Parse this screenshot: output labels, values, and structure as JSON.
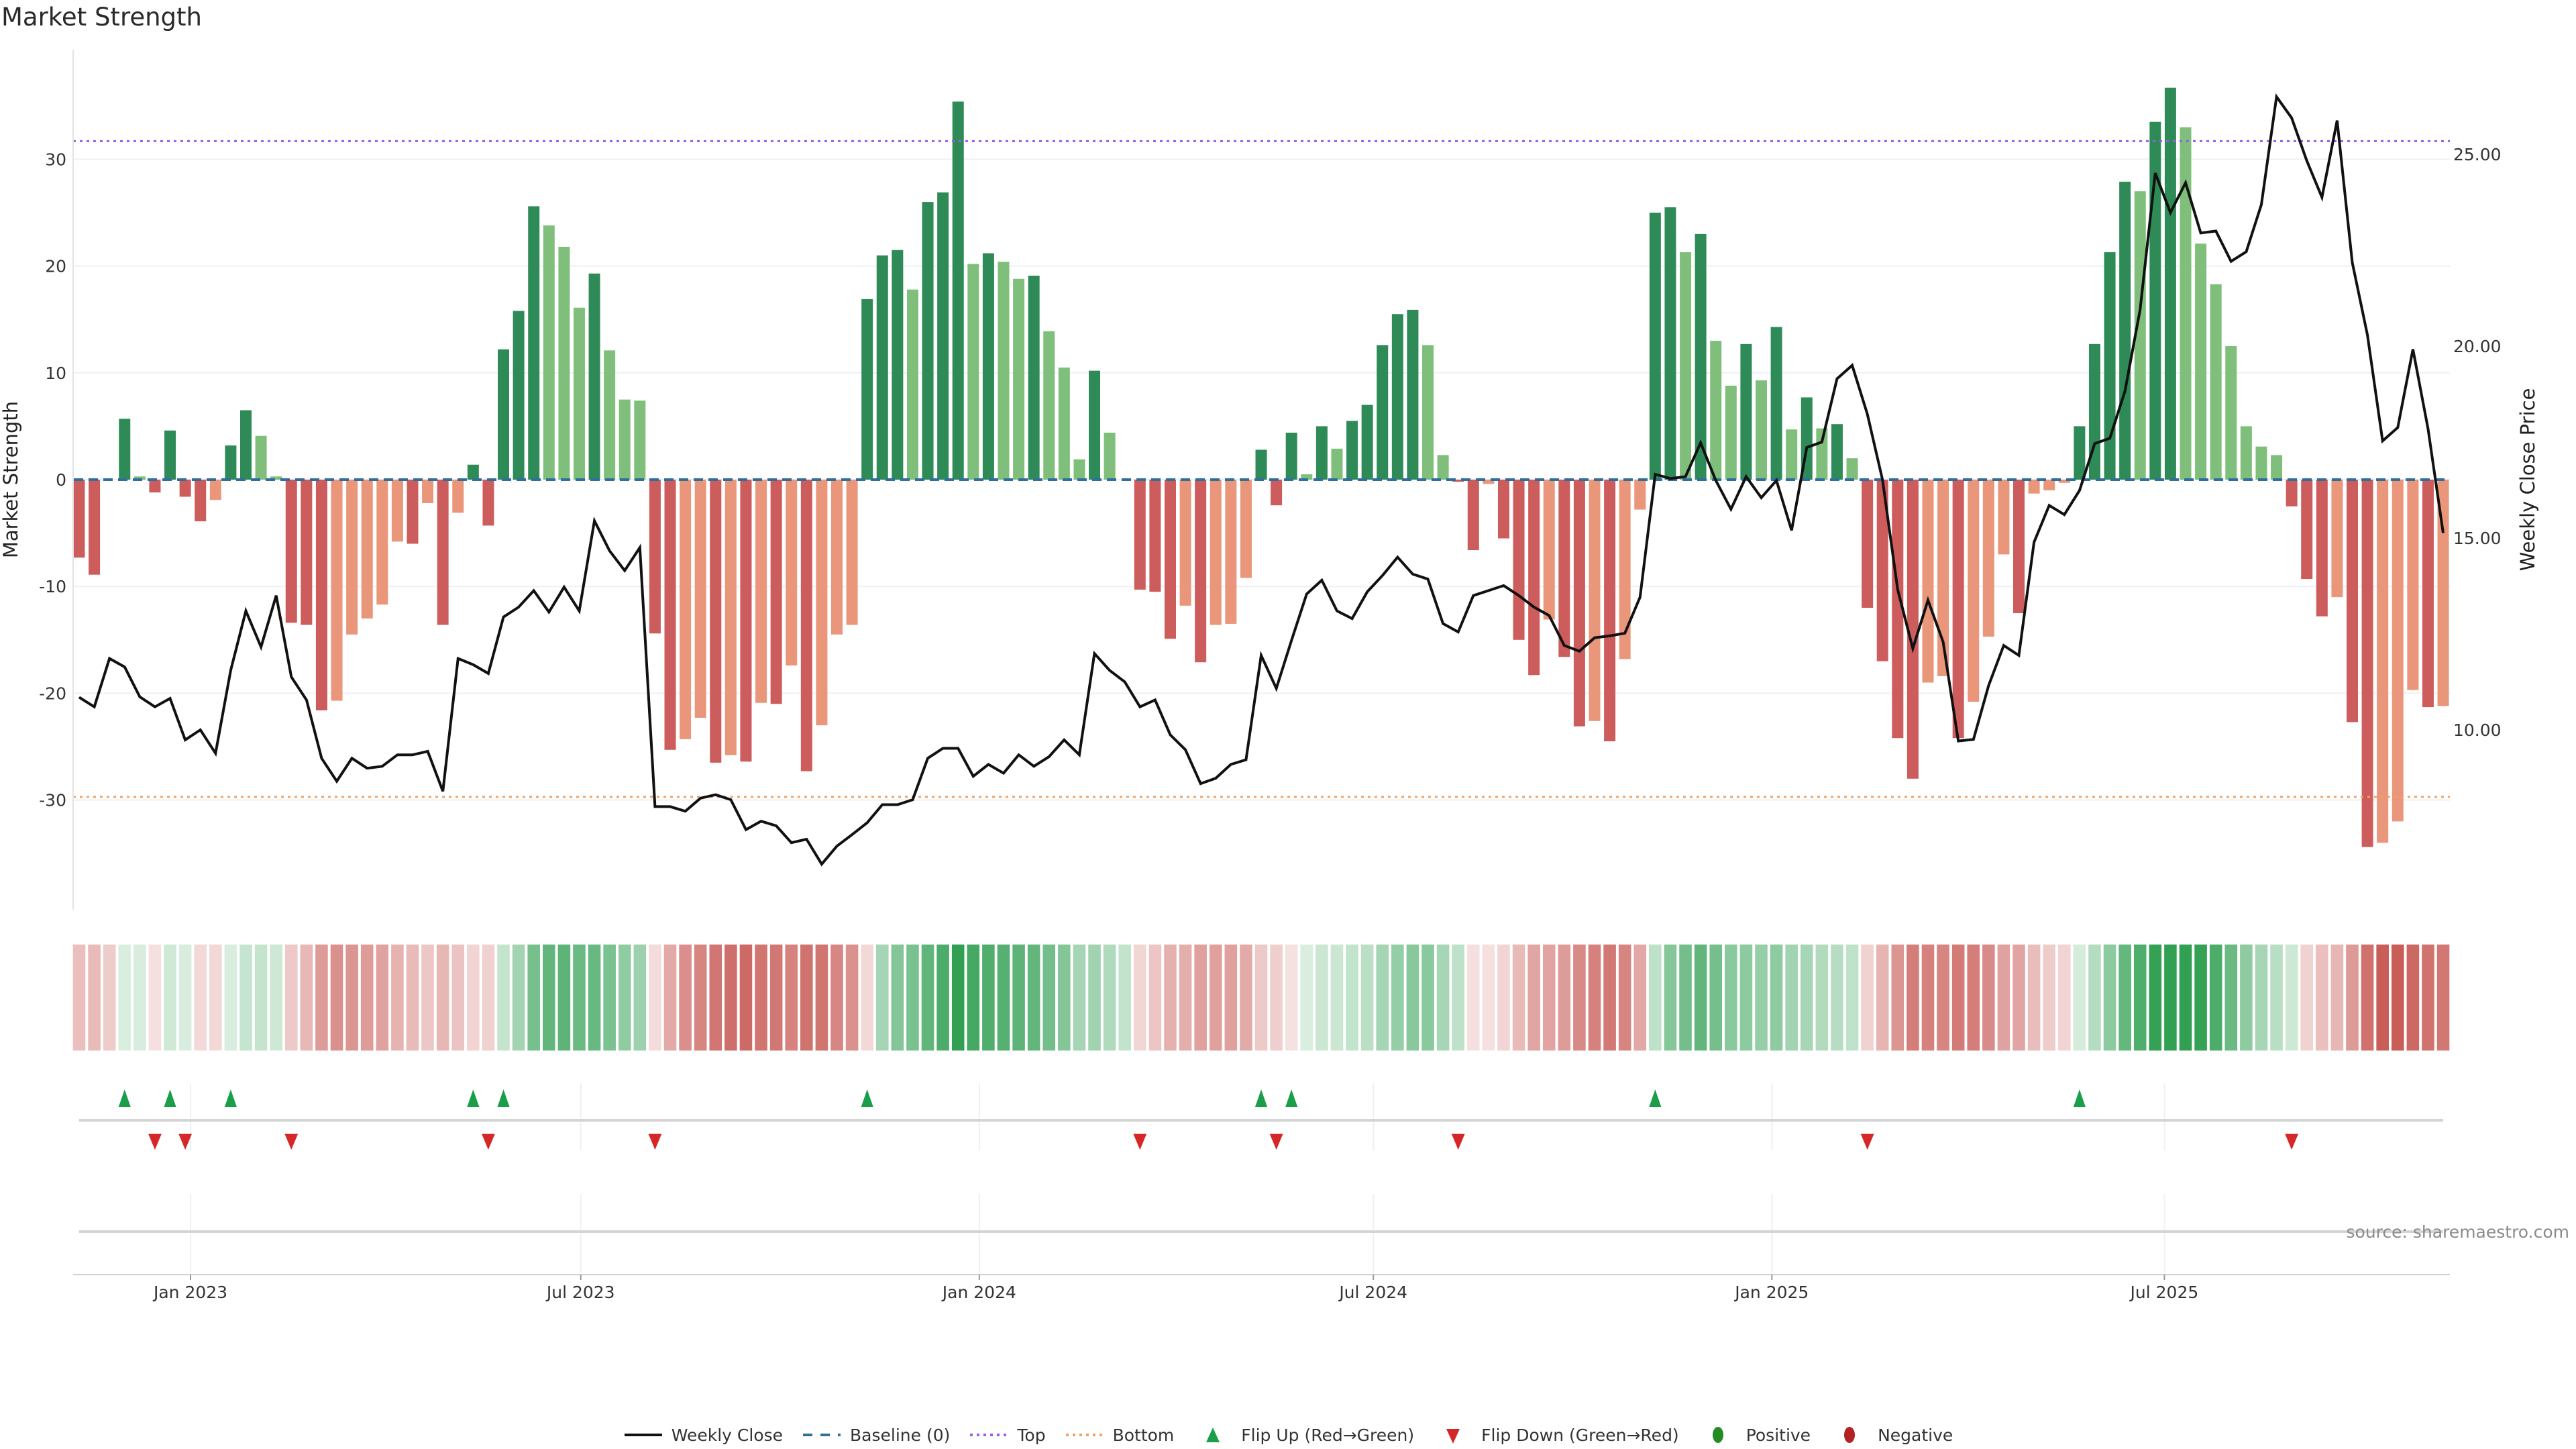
{
  "title": "Market Strength",
  "source": "source: sharemaestro.com",
  "chart_data": {
    "type": "bar",
    "title": "Market Strength",
    "ylabel": "Market Strength",
    "y2label": "Weekly Close Price",
    "ylim": [
      -40.3,
      40.3
    ],
    "y2lim": [
      5.33,
      27.72
    ],
    "yticks": [
      -30,
      -20,
      -10,
      0,
      10,
      20,
      30
    ],
    "y2ticks": [
      "10.00",
      "15.00",
      "20.00",
      "25.00"
    ],
    "xticks": [
      {
        "label": "Jan 2023",
        "week": 7.35
      },
      {
        "label": "Jul 2023",
        "week": 33.1
      },
      {
        "label": "Jan 2024",
        "week": 59.4
      },
      {
        "label": "Jul 2024",
        "week": 85.4
      },
      {
        "label": "Jan 2025",
        "week": 111.7
      },
      {
        "label": "Jul 2025",
        "week": 137.6
      }
    ],
    "thresholds": {
      "top": 31.7,
      "bottom": -29.7,
      "baseline": 0
    },
    "strength": [
      -7.3,
      -8.9,
      0,
      5.7,
      0.3,
      -1.2,
      4.6,
      -1.6,
      -3.9,
      -1.9,
      3.2,
      6.5,
      4.1,
      0.3,
      -13.4,
      -13.6,
      -21.6,
      -20.7,
      -14.5,
      -13.0,
      -11.7,
      -5.8,
      -6.0,
      -2.2,
      -13.6,
      -3.1,
      1.4,
      -4.3,
      12.2,
      15.8,
      25.6,
      23.8,
      21.8,
      16.1,
      19.3,
      12.1,
      7.5,
      7.4,
      -14.4,
      -25.3,
      -24.3,
      -22.3,
      -26.5,
      -25.8,
      -26.4,
      -20.9,
      -21.0,
      -17.4,
      -27.3,
      -23.0,
      -14.5,
      -13.6,
      16.9,
      21.0,
      21.5,
      17.8,
      26.0,
      26.9,
      35.4,
      20.2,
      21.2,
      20.4,
      18.8,
      19.1,
      13.9,
      10.5,
      1.9,
      10.2,
      4.4,
      0,
      -10.3,
      -10.5,
      -14.9,
      -11.8,
      -17.1,
      -13.6,
      -13.5,
      -9.2,
      2.8,
      -2.4,
      4.4,
      0.5,
      5.0,
      2.9,
      5.5,
      7.0,
      12.6,
      15.5,
      15.9,
      12.6,
      2.3,
      -0.2,
      -6.6,
      -0.4,
      -5.5,
      -15.0,
      -18.3,
      -13.1,
      -16.6,
      -23.1,
      -22.6,
      -24.5,
      -16.8,
      -2.8,
      25.0,
      25.5,
      21.3,
      23.0,
      13.0,
      8.8,
      12.7,
      9.3,
      14.3,
      4.7,
      7.7,
      4.8,
      5.2,
      2.0,
      -12.0,
      -17.0,
      -24.2,
      -28.0,
      -19.0,
      -18.4,
      -24.2,
      -20.8,
      -14.7,
      -7.0,
      -12.5,
      -1.3,
      -1.0,
      -0.3,
      5.0,
      12.7,
      21.3,
      27.9,
      27.0,
      33.5,
      36.7,
      33.0,
      22.1,
      18.3,
      12.5,
      5.0,
      3.1,
      2.3,
      -2.5,
      -9.3,
      -12.8,
      -11.0,
      -22.7,
      -34.4,
      -34.0,
      -32.0,
      -19.7,
      -21.3,
      -21.2
    ],
    "weekly_close": [
      10.85,
      10.6,
      11.86,
      11.64,
      10.86,
      10.6,
      10.82,
      9.74,
      10.0,
      9.39,
      11.55,
      13.1,
      12.16,
      13.5,
      11.38,
      10.78,
      9.26,
      8.66,
      9.26,
      9.0,
      9.05,
      9.35,
      9.35,
      9.44,
      8.4,
      11.86,
      11.7,
      11.47,
      12.94,
      13.2,
      13.63,
      13.07,
      13.72,
      13.1,
      15.45,
      14.67,
      14.15,
      14.75,
      8.0,
      8.0,
      7.88,
      8.22,
      8.31,
      8.18,
      7.4,
      7.62,
      7.5,
      7.06,
      7.15,
      6.5,
      6.97,
      7.27,
      7.58,
      8.05,
      8.05,
      8.18,
      9.26,
      9.52,
      9.52,
      8.79,
      9.1,
      8.87,
      9.35,
      9.05,
      9.3,
      9.74,
      9.35,
      11.99,
      11.55,
      11.25,
      10.6,
      10.78,
      9.87,
      9.48,
      8.6,
      8.74,
      9.1,
      9.22,
      11.94,
      11.08,
      12.33,
      13.54,
      13.9,
      13.1,
      12.9,
      13.6,
      14.02,
      14.5,
      14.06,
      13.93,
      12.77,
      12.55,
      13.5,
      13.63,
      13.76,
      13.5,
      13.2,
      12.98,
      12.2,
      12.05,
      12.4,
      12.45,
      12.52,
      13.46,
      16.66,
      16.55,
      16.6,
      17.48,
      16.5,
      15.75,
      16.6,
      16.05,
      16.5,
      15.2,
      17.36,
      17.5,
      19.15,
      19.5,
      18.23,
      16.52,
      13.66,
      12.12,
      13.38,
      12.29,
      9.71,
      9.75,
      11.15,
      12.2,
      11.94,
      14.89,
      15.85,
      15.61,
      16.24,
      17.46,
      17.6,
      18.83,
      20.95,
      24.51,
      23.48,
      24.26,
      22.95,
      23.0,
      22.21,
      22.46,
      23.69,
      26.5,
      25.95,
      24.83,
      23.88,
      25.88,
      22.18,
      20.29,
      17.53,
      17.88,
      19.92,
      17.85,
      15.13
    ],
    "flip_up_weeks": [
      3,
      6,
      10,
      26,
      28,
      52,
      78,
      80,
      104,
      132
    ],
    "flip_down_weeks": [
      5,
      7,
      14,
      27,
      38,
      70,
      79,
      91,
      118,
      146
    ],
    "legend": [
      {
        "label": "Weekly Close",
        "symbol": "line",
        "color": "#111111"
      },
      {
        "label": "Baseline (0)",
        "symbol": "dash",
        "color": "#2f6f9f"
      },
      {
        "label": "Top",
        "symbol": "dot",
        "color": "#9b5de5"
      },
      {
        "label": "Bottom",
        "symbol": "dot",
        "color": "#f4a261"
      },
      {
        "label": "Flip Up (Red→Green)",
        "symbol": "tri-up",
        "color": "#1a9e4a"
      },
      {
        "label": "Flip Down (Green→Red)",
        "symbol": "tri-down",
        "color": "#d62728"
      },
      {
        "label": "Positive",
        "symbol": "circle",
        "color": "#228b22"
      },
      {
        "label": "Negative",
        "symbol": "circle",
        "color": "#b22222"
      }
    ],
    "legend_position": "bottom-center",
    "colors": {
      "pos_rising": "#2e8b57",
      "pos_falling": "#7fbf7b",
      "neg_falling": "#cd5c5c",
      "neg_rising": "#e9967a",
      "heat_pos": "#2e9e50",
      "heat_neg": "#c85a55"
    }
  }
}
